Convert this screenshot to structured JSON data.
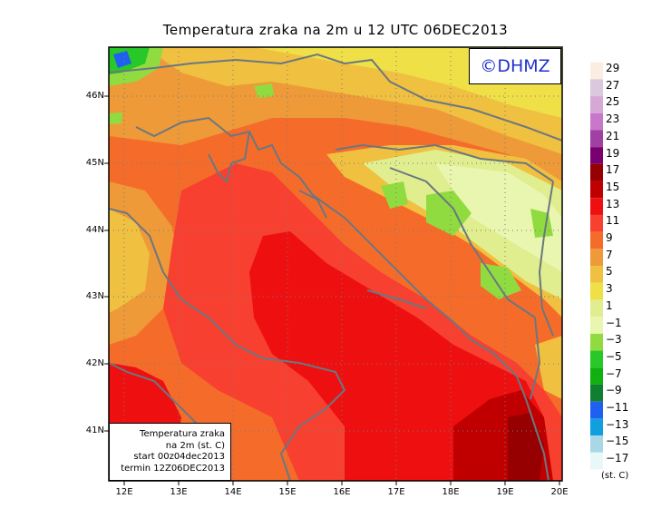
{
  "title": "Temperatura zraka na 2m u 12 UTC 06DEC2013",
  "logo": "©DHMZ",
  "info_box": {
    "line1": "Temperatura zraka",
    "line2": "na 2m (st. C)",
    "line3": "start 00z04dec2013",
    "line4": "termin 12Z06DEC2013"
  },
  "lat_labels": [
    "46N",
    "45N",
    "44N",
    "43N",
    "42N",
    "41N"
  ],
  "lon_labels": [
    "12E",
    "13E",
    "14E",
    "15E",
    "16E",
    "17E",
    "18E",
    "19E",
    "20E"
  ],
  "colorbar": {
    "labels": [
      "29",
      "27",
      "25",
      "23",
      "21",
      "19",
      "17",
      "15",
      "13",
      "11",
      "9",
      "7",
      "5",
      "3",
      "1",
      "−1",
      "−3",
      "−5",
      "−7",
      "−9",
      "−11",
      "−13",
      "−15",
      "−17"
    ],
    "unit": "(st. C)",
    "colors": [
      "#fbeee0",
      "#dcc8dc",
      "#d6a8d6",
      "#c878c8",
      "#a040a0",
      "#7a0070",
      "#960000",
      "#c00000",
      "#ee1010",
      "#f84030",
      "#f56c2a",
      "#ee9a38",
      "#f0c040",
      "#f0e048",
      "#e0ee90",
      "#e8f6b0",
      "#90dc40",
      "#28c828",
      "#10b010",
      "#108030",
      "#2060f0",
      "#10a0e0",
      "#a8d8e8",
      "#e8f8f8"
    ]
  }
}
